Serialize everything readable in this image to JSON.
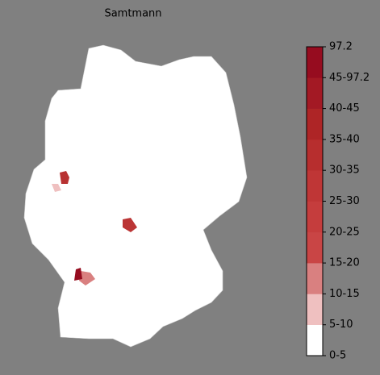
{
  "title": "Samtmann",
  "colorbar": {
    "ticks": [
      "0-5",
      "5-10",
      "10-15",
      "15-20",
      "20-25",
      "25-30",
      "30-35",
      "35-40",
      "40-45",
      "45-97.2",
      "97.2"
    ],
    "colors": [
      "#ffffff",
      "#efc0c0",
      "#d98080",
      "#c94545",
      "#c53d3d",
      "#bf3636",
      "#b72e2e",
      "#ae2526",
      "#a31924",
      "#960c1f"
    ]
  }
}
